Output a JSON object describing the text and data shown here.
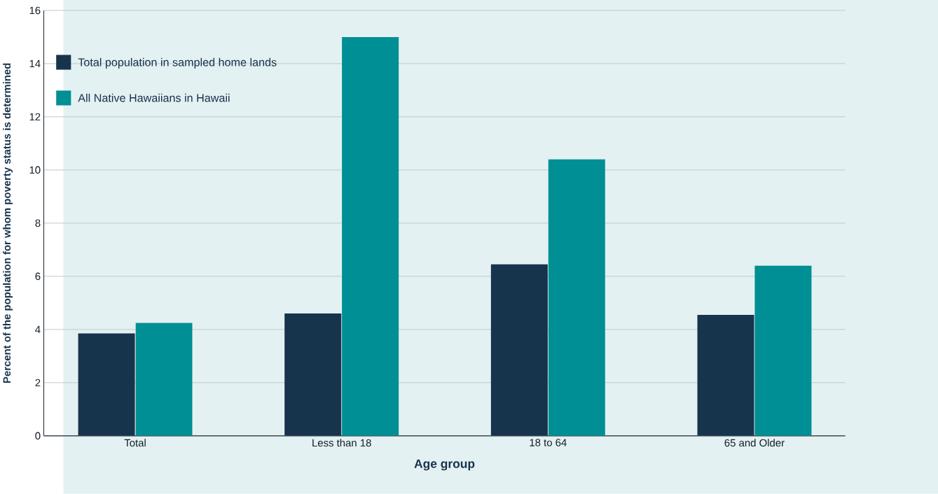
{
  "chart_data": {
    "type": "bar",
    "xlabel": "Age group",
    "ylabel": "Percent of the population for whom poverty status is determined",
    "categories": [
      "Total",
      "Less than 18",
      "18 to 64",
      "65 and Older"
    ],
    "series": [
      {
        "name": "Total population in sampled home lands",
        "color": "#17344d",
        "values": [
          3.85,
          4.6,
          6.45,
          4.55
        ]
      },
      {
        "name": "All Native Hawaiians in Hawaii",
        "color": "#008f94",
        "values": [
          4.25,
          15.0,
          10.4,
          6.4
        ]
      }
    ],
    "ylim": [
      0,
      16
    ],
    "yticks": [
      0,
      2,
      4,
      6,
      8,
      10,
      12,
      14,
      16
    ],
    "grid": "y",
    "legend": "top left"
  }
}
